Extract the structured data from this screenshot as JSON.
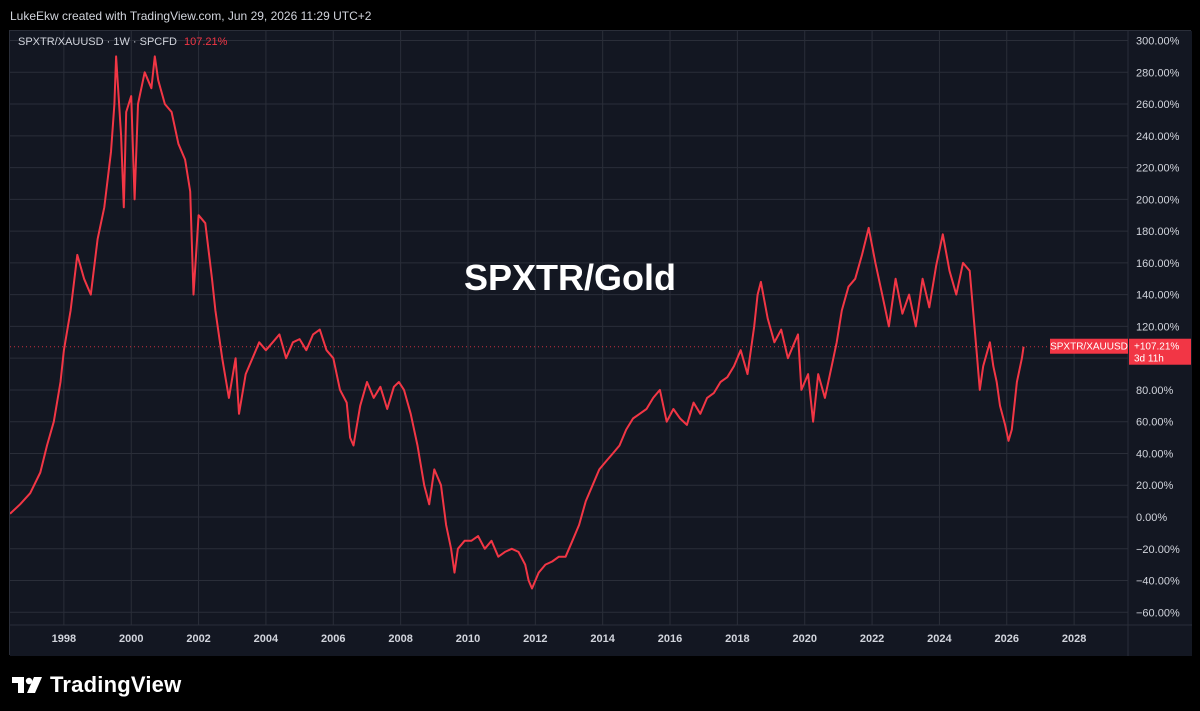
{
  "header": {
    "credit": "LukeEkw created with TradingView.com, Jun 29, 2026 11:29 UTC+2"
  },
  "legend": {
    "symbol": "SPXTR/XAUUSD · 1W · SPCFD",
    "value": "107.21%"
  },
  "price_label": {
    "symbol": "SPXTR/XAUUSD",
    "value": "+107.21%",
    "countdown": "3d 11h"
  },
  "footer": {
    "brand": "TradingView"
  },
  "colors": {
    "background": "#131722",
    "line": "#f23645",
    "grid": "#2a2e39",
    "text": "#d1d4dc"
  },
  "chart_data": {
    "type": "line",
    "title": "SPXTR/Gold",
    "x_ticks": [
      "1998",
      "2000",
      "2002",
      "2004",
      "2006",
      "2008",
      "2010",
      "2012",
      "2014",
      "2016",
      "2018",
      "2020",
      "2022",
      "2024",
      "2026",
      "2028"
    ],
    "y_ticks": [
      "300.00%",
      "280.00%",
      "260.00%",
      "240.00%",
      "220.00%",
      "200.00%",
      "180.00%",
      "160.00%",
      "140.00%",
      "120.00%",
      "100.00%",
      "80.00%",
      "60.00%",
      "40.00%",
      "20.00%",
      "0.00%",
      "−20.00%",
      "−40.00%",
      "−60.00%"
    ],
    "xlim": [
      1996.4,
      2029.6
    ],
    "ylim": [
      -68,
      306
    ],
    "grid": true,
    "series": [
      {
        "name": "SPXTR/XAUUSD",
        "points": [
          [
            1996.4,
            2
          ],
          [
            1996.7,
            8
          ],
          [
            1997.0,
            15
          ],
          [
            1997.3,
            28
          ],
          [
            1997.5,
            45
          ],
          [
            1997.7,
            60
          ],
          [
            1997.9,
            85
          ],
          [
            1998.0,
            105
          ],
          [
            1998.2,
            130
          ],
          [
            1998.4,
            165
          ],
          [
            1998.6,
            150
          ],
          [
            1998.8,
            140
          ],
          [
            1999.0,
            175
          ],
          [
            1999.2,
            195
          ],
          [
            1999.4,
            230
          ],
          [
            1999.5,
            260
          ],
          [
            1999.55,
            290
          ],
          [
            1999.7,
            240
          ],
          [
            1999.78,
            195
          ],
          [
            1999.85,
            255
          ],
          [
            2000.0,
            265
          ],
          [
            2000.1,
            200
          ],
          [
            2000.2,
            260
          ],
          [
            2000.4,
            280
          ],
          [
            2000.6,
            270
          ],
          [
            2000.7,
            290
          ],
          [
            2000.8,
            275
          ],
          [
            2001.0,
            260
          ],
          [
            2001.2,
            255
          ],
          [
            2001.4,
            235
          ],
          [
            2001.6,
            225
          ],
          [
            2001.75,
            205
          ],
          [
            2001.85,
            140
          ],
          [
            2002.0,
            190
          ],
          [
            2002.2,
            185
          ],
          [
            2002.4,
            150
          ],
          [
            2002.5,
            130
          ],
          [
            2002.7,
            100
          ],
          [
            2002.9,
            75
          ],
          [
            2003.1,
            100
          ],
          [
            2003.2,
            65
          ],
          [
            2003.4,
            90
          ],
          [
            2003.6,
            100
          ],
          [
            2003.8,
            110
          ],
          [
            2004.0,
            105
          ],
          [
            2004.2,
            110
          ],
          [
            2004.4,
            115
          ],
          [
            2004.6,
            100
          ],
          [
            2004.8,
            110
          ],
          [
            2005.0,
            112
          ],
          [
            2005.2,
            105
          ],
          [
            2005.4,
            115
          ],
          [
            2005.6,
            118
          ],
          [
            2005.8,
            105
          ],
          [
            2006.0,
            100
          ],
          [
            2006.2,
            80
          ],
          [
            2006.4,
            72
          ],
          [
            2006.5,
            50
          ],
          [
            2006.6,
            45
          ],
          [
            2006.8,
            70
          ],
          [
            2007.0,
            85
          ],
          [
            2007.2,
            75
          ],
          [
            2007.4,
            82
          ],
          [
            2007.6,
            68
          ],
          [
            2007.8,
            82
          ],
          [
            2007.95,
            85
          ],
          [
            2008.1,
            80
          ],
          [
            2008.3,
            65
          ],
          [
            2008.5,
            45
          ],
          [
            2008.7,
            20
          ],
          [
            2008.85,
            8
          ],
          [
            2009.0,
            30
          ],
          [
            2009.2,
            20
          ],
          [
            2009.35,
            -5
          ],
          [
            2009.5,
            -20
          ],
          [
            2009.6,
            -35
          ],
          [
            2009.7,
            -20
          ],
          [
            2009.9,
            -15
          ],
          [
            2010.1,
            -15
          ],
          [
            2010.3,
            -12
          ],
          [
            2010.5,
            -20
          ],
          [
            2010.7,
            -15
          ],
          [
            2010.9,
            -25
          ],
          [
            2011.1,
            -22
          ],
          [
            2011.3,
            -20
          ],
          [
            2011.5,
            -22
          ],
          [
            2011.7,
            -30
          ],
          [
            2011.8,
            -40
          ],
          [
            2011.9,
            -45
          ],
          [
            2012.1,
            -35
          ],
          [
            2012.3,
            -30
          ],
          [
            2012.5,
            -28
          ],
          [
            2012.7,
            -25
          ],
          [
            2012.9,
            -25
          ],
          [
            2013.1,
            -15
          ],
          [
            2013.3,
            -5
          ],
          [
            2013.5,
            10
          ],
          [
            2013.7,
            20
          ],
          [
            2013.9,
            30
          ],
          [
            2014.1,
            35
          ],
          [
            2014.3,
            40
          ],
          [
            2014.5,
            45
          ],
          [
            2014.7,
            55
          ],
          [
            2014.9,
            62
          ],
          [
            2015.1,
            65
          ],
          [
            2015.3,
            68
          ],
          [
            2015.5,
            75
          ],
          [
            2015.7,
            80
          ],
          [
            2015.9,
            60
          ],
          [
            2016.1,
            68
          ],
          [
            2016.3,
            62
          ],
          [
            2016.5,
            58
          ],
          [
            2016.7,
            72
          ],
          [
            2016.9,
            65
          ],
          [
            2017.1,
            75
          ],
          [
            2017.3,
            78
          ],
          [
            2017.5,
            85
          ],
          [
            2017.7,
            88
          ],
          [
            2017.9,
            95
          ],
          [
            2018.1,
            105
          ],
          [
            2018.3,
            90
          ],
          [
            2018.5,
            120
          ],
          [
            2018.6,
            140
          ],
          [
            2018.7,
            148
          ],
          [
            2018.9,
            125
          ],
          [
            2019.1,
            110
          ],
          [
            2019.3,
            118
          ],
          [
            2019.5,
            100
          ],
          [
            2019.7,
            110
          ],
          [
            2019.8,
            115
          ],
          [
            2019.9,
            80
          ],
          [
            2020.1,
            90
          ],
          [
            2020.25,
            60
          ],
          [
            2020.4,
            90
          ],
          [
            2020.6,
            75
          ],
          [
            2020.8,
            95
          ],
          [
            2020.95,
            110
          ],
          [
            2021.1,
            130
          ],
          [
            2021.3,
            145
          ],
          [
            2021.5,
            150
          ],
          [
            2021.7,
            165
          ],
          [
            2021.9,
            182
          ],
          [
            2022.1,
            160
          ],
          [
            2022.3,
            140
          ],
          [
            2022.5,
            120
          ],
          [
            2022.7,
            150
          ],
          [
            2022.9,
            128
          ],
          [
            2023.1,
            140
          ],
          [
            2023.3,
            120
          ],
          [
            2023.5,
            150
          ],
          [
            2023.7,
            132
          ],
          [
            2023.9,
            158
          ],
          [
            2024.1,
            178
          ],
          [
            2024.3,
            155
          ],
          [
            2024.5,
            140
          ],
          [
            2024.7,
            160
          ],
          [
            2024.9,
            155
          ],
          [
            2025.0,
            130
          ],
          [
            2025.1,
            105
          ],
          [
            2025.2,
            80
          ],
          [
            2025.3,
            95
          ],
          [
            2025.5,
            110
          ],
          [
            2025.6,
            95
          ],
          [
            2025.7,
            85
          ],
          [
            2025.8,
            70
          ],
          [
            2025.95,
            58
          ],
          [
            2026.05,
            48
          ],
          [
            2026.15,
            55
          ],
          [
            2026.3,
            85
          ],
          [
            2026.45,
            100
          ],
          [
            2026.5,
            107.21
          ]
        ]
      }
    ],
    "last_value": 107.21
  }
}
